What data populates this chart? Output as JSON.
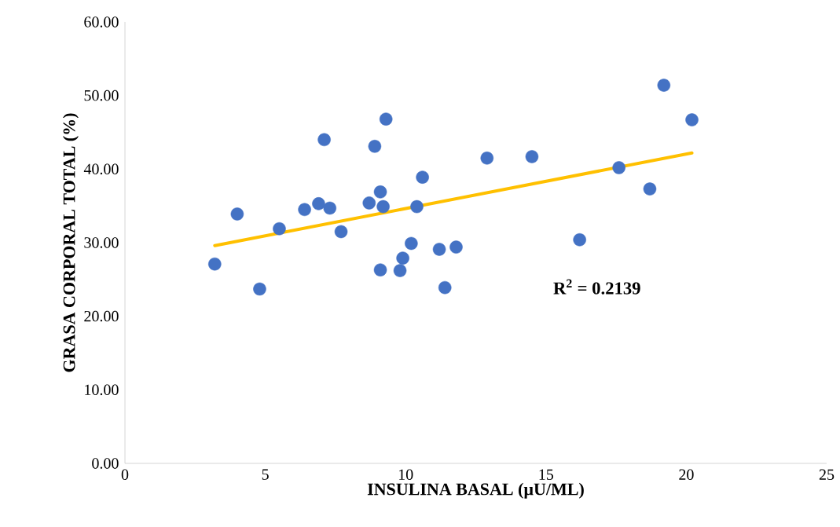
{
  "chart_data": {
    "type": "scatter",
    "xlabel": "INSULINA BASAL (µU/ML)",
    "ylabel": "GRASA CORPORAL TOTAL (%)",
    "annotations": [
      "**R$^{2}$ = 0.2139**"
    ],
    "xlim": [
      0,
      25
    ],
    "xticks": [
      0,
      5,
      10,
      15,
      20,
      25
    ],
    "ylim": [
      0,
      60
    ],
    "yticks": [
      {
        "value": 0,
        "label": "0.00"
      },
      {
        "value": 10,
        "label": "10.00"
      },
      {
        "value": 20,
        "label": "20.00"
      },
      {
        "value": 30,
        "label": "30.00"
      },
      {
        "value": 40,
        "label": "40.00"
      },
      {
        "value": 50,
        "label": "50.00"
      },
      {
        "value": 60,
        "label": "60.00"
      }
    ],
    "series": [
      {
        "marker": "circle",
        "color": "#4472c4",
        "x": [
          3.2,
          4.0,
          4.8,
          5.5,
          6.4,
          6.9,
          7.1,
          7.3,
          7.7,
          8.7,
          8.9,
          9.1,
          9.1,
          9.2,
          9.3,
          9.8,
          9.9,
          10.2,
          10.4,
          10.6,
          11.2,
          11.4,
          11.8,
          12.9,
          14.5,
          16.2,
          17.6,
          18.7,
          19.2,
          20.2
        ],
        "values": [
          27.1,
          33.9,
          23.7,
          31.9,
          34.5,
          35.3,
          44.0,
          34.7,
          31.5,
          35.4,
          43.1,
          36.9,
          26.3,
          34.9,
          46.8,
          26.2,
          27.9,
          29.9,
          34.9,
          38.9,
          29.1,
          23.9,
          29.4,
          41.5,
          41.7,
          30.4,
          40.2,
          37.3,
          51.4,
          46.7
        ]
      },
      {
        "type": "line",
        "marker": "none",
        "color": "#ffc000",
        "x": [
          3.2,
          20.2
        ],
        "values": [
          29.6,
          42.2
        ]
      }
    ]
  }
}
